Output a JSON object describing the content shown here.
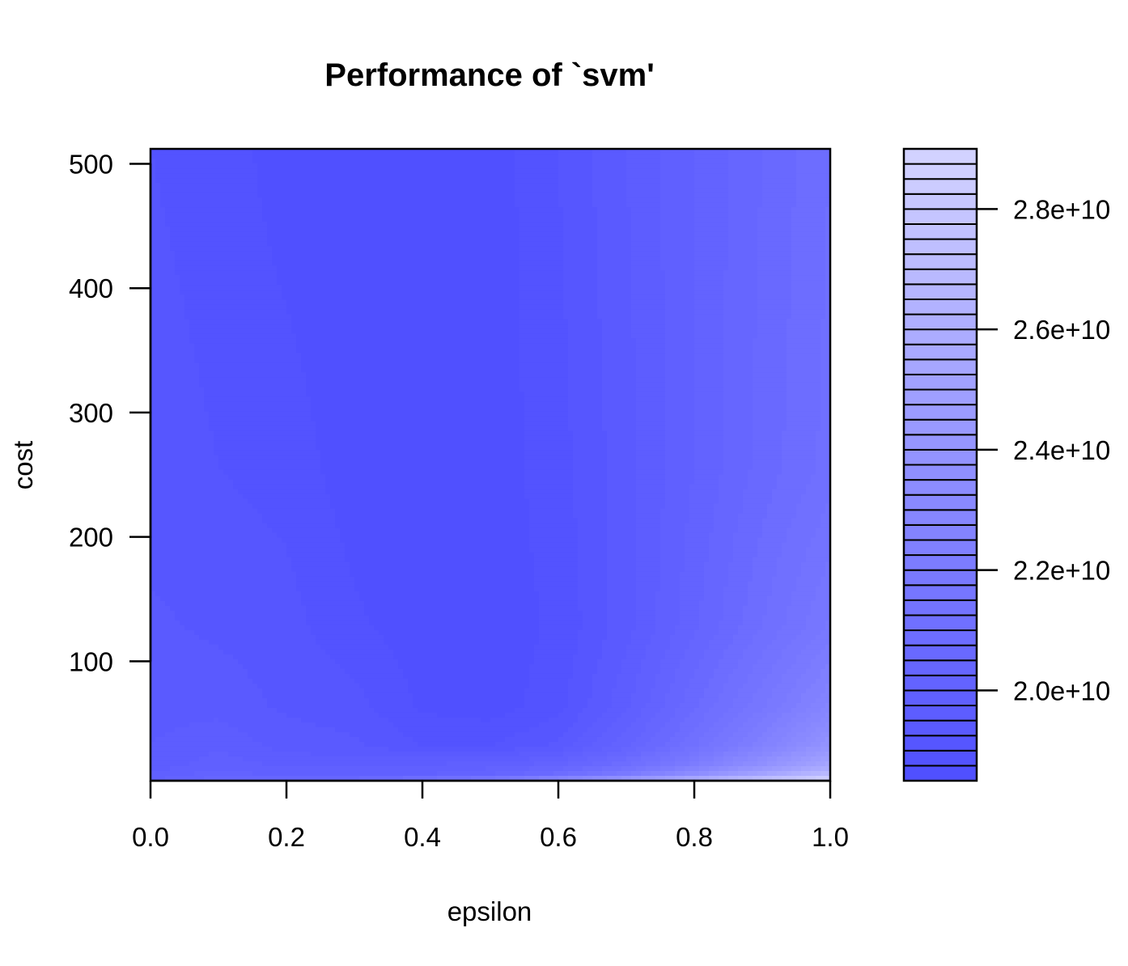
{
  "chart_data": {
    "type": "heatmap",
    "subtype": "filled-contour",
    "title": "Performance of `svm'",
    "xlabel": "epsilon",
    "ylabel": "cost",
    "xlim": [
      0,
      1
    ],
    "ylim": [
      4,
      512
    ],
    "x_ticks": [
      0,
      0.2,
      0.4,
      0.6,
      0.8,
      1.0
    ],
    "x_tick_labels": [
      "0.0",
      "0.2",
      "0.4",
      "0.6",
      "0.8",
      "1.0"
    ],
    "y_ticks": [
      100,
      200,
      300,
      400,
      500
    ],
    "y_tick_labels": [
      "100",
      "200",
      "300",
      "400",
      "500"
    ],
    "x": [
      0,
      0.1,
      0.2,
      0.3,
      0.4,
      0.5,
      0.6,
      0.7,
      0.8,
      0.9,
      1.0
    ],
    "y": [
      4,
      8,
      16,
      32,
      64,
      128,
      256,
      512
    ],
    "z": [
      [
        20000000000.0,
        20500000000.0,
        20700000000.0,
        21000000000.0,
        21700000000.0,
        22500000000.0,
        24000000000.0,
        25500000000.0,
        27000000000.0,
        28500000000.0,
        29500000000.0
      ],
      [
        19800000000.0,
        20200000000.0,
        19900000000.0,
        19900000000.0,
        20000000000.0,
        20300000000.0,
        21000000000.0,
        22200000000.0,
        23800000000.0,
        25500000000.0,
        27500000000.0
      ],
      [
        19600000000.0,
        19900000000.0,
        19700000000.0,
        19700000000.0,
        19800000000.0,
        19900000000.0,
        20200000000.0,
        21000000000.0,
        22200000000.0,
        23800000000.0,
        25500000000.0
      ],
      [
        19500000000.0,
        19700000000.0,
        19400000000.0,
        19300000000.0,
        19000000000.0,
        19000000000.0,
        19300000000.0,
        20200000000.0,
        21200000000.0,
        22500000000.0,
        24000000000.0
      ],
      [
        19400000000.0,
        19400000000.0,
        19200000000.0,
        19100000000.0,
        18700000000.0,
        18600000000.0,
        18900000000.0,
        19700000000.0,
        20700000000.0,
        21700000000.0,
        22800000000.0
      ],
      [
        19300000000.0,
        19200000000.0,
        19100000000.0,
        18800000000.0,
        18600000000.0,
        18600000000.0,
        18800000000.0,
        19400000000.0,
        20200000000.0,
        21000000000.0,
        21800000000.0
      ],
      [
        19100000000.0,
        19000000000.0,
        18900000000.0,
        18600000000.0,
        18500000000.0,
        18600000000.0,
        18900000000.0,
        19400000000.0,
        20000000000.0,
        20600000000.0,
        21100000000.0
      ],
      [
        19000000000.0,
        18900000000.0,
        18600000000.0,
        18500000000.0,
        18500000000.0,
        18600000000.0,
        19000000000.0,
        19500000000.0,
        20000000000.0,
        20500000000.0,
        21000000000.0
      ]
    ],
    "levels": [
      18500000000.0,
      18750000000.0,
      19000000000.0,
      19250000000.0,
      19500000000.0,
      19750000000.0,
      20000000000.0,
      20250000000.0,
      20500000000.0,
      20750000000.0,
      21000000000.0,
      21250000000.0,
      21500000000.0,
      21750000000.0,
      22000000000.0,
      22250000000.0,
      22500000000.0,
      22750000000.0,
      23000000000.0,
      23250000000.0,
      23500000000.0,
      23750000000.0,
      24000000000.0,
      24250000000.0,
      24500000000.0,
      24750000000.0,
      25000000000.0,
      25250000000.0,
      25500000000.0,
      25750000000.0,
      26000000000.0,
      26250000000.0,
      26500000000.0,
      26750000000.0,
      27000000000.0,
      27250000000.0,
      27500000000.0,
      27750000000.0,
      28000000000.0,
      28250000000.0,
      28500000000.0,
      28750000000.0,
      29000000000.0
    ],
    "legend": {
      "placement": "right",
      "ticks": [
        20000000000.0,
        22000000000.0,
        24000000000.0,
        26000000000.0,
        28000000000.0
      ],
      "tick_labels": [
        "2.0e+10",
        "2.2e+10",
        "2.4e+10",
        "2.6e+10",
        "2.8e+10"
      ]
    },
    "colors": {
      "low": "#5050ff",
      "high": "#d2d2ff",
      "frame": "#000000"
    },
    "grid": false
  }
}
